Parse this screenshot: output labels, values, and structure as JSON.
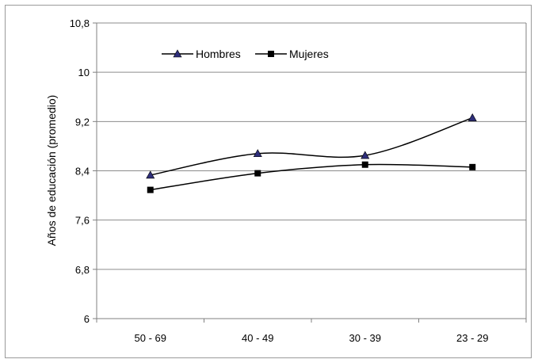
{
  "chart_data": {
    "type": "line",
    "title": "",
    "xlabel": "",
    "ylabel": "Años de educación (promedio)",
    "categories": [
      "50 - 69",
      "40 - 49",
      "30 - 39",
      "23 - 29"
    ],
    "ylim": [
      6,
      10.8
    ],
    "yticks": [
      6,
      6.8,
      7.6,
      8.4,
      9.2,
      10,
      10.8
    ],
    "ytick_labels": [
      "6",
      "6,8",
      "7,6",
      "8,4",
      "9,2",
      "10",
      "10,8"
    ],
    "grid": "horizontal",
    "legend_position": "top-left",
    "series": [
      {
        "name": "Hombres",
        "marker": "triangle",
        "values": [
          8.33,
          8.68,
          8.65,
          9.26
        ],
        "marker_color": "#2e2e7a",
        "line_color": "#000000"
      },
      {
        "name": "Mujeres",
        "marker": "square",
        "values": [
          8.09,
          8.36,
          8.5,
          8.46
        ],
        "marker_color": "#000000",
        "line_color": "#000000"
      }
    ]
  }
}
